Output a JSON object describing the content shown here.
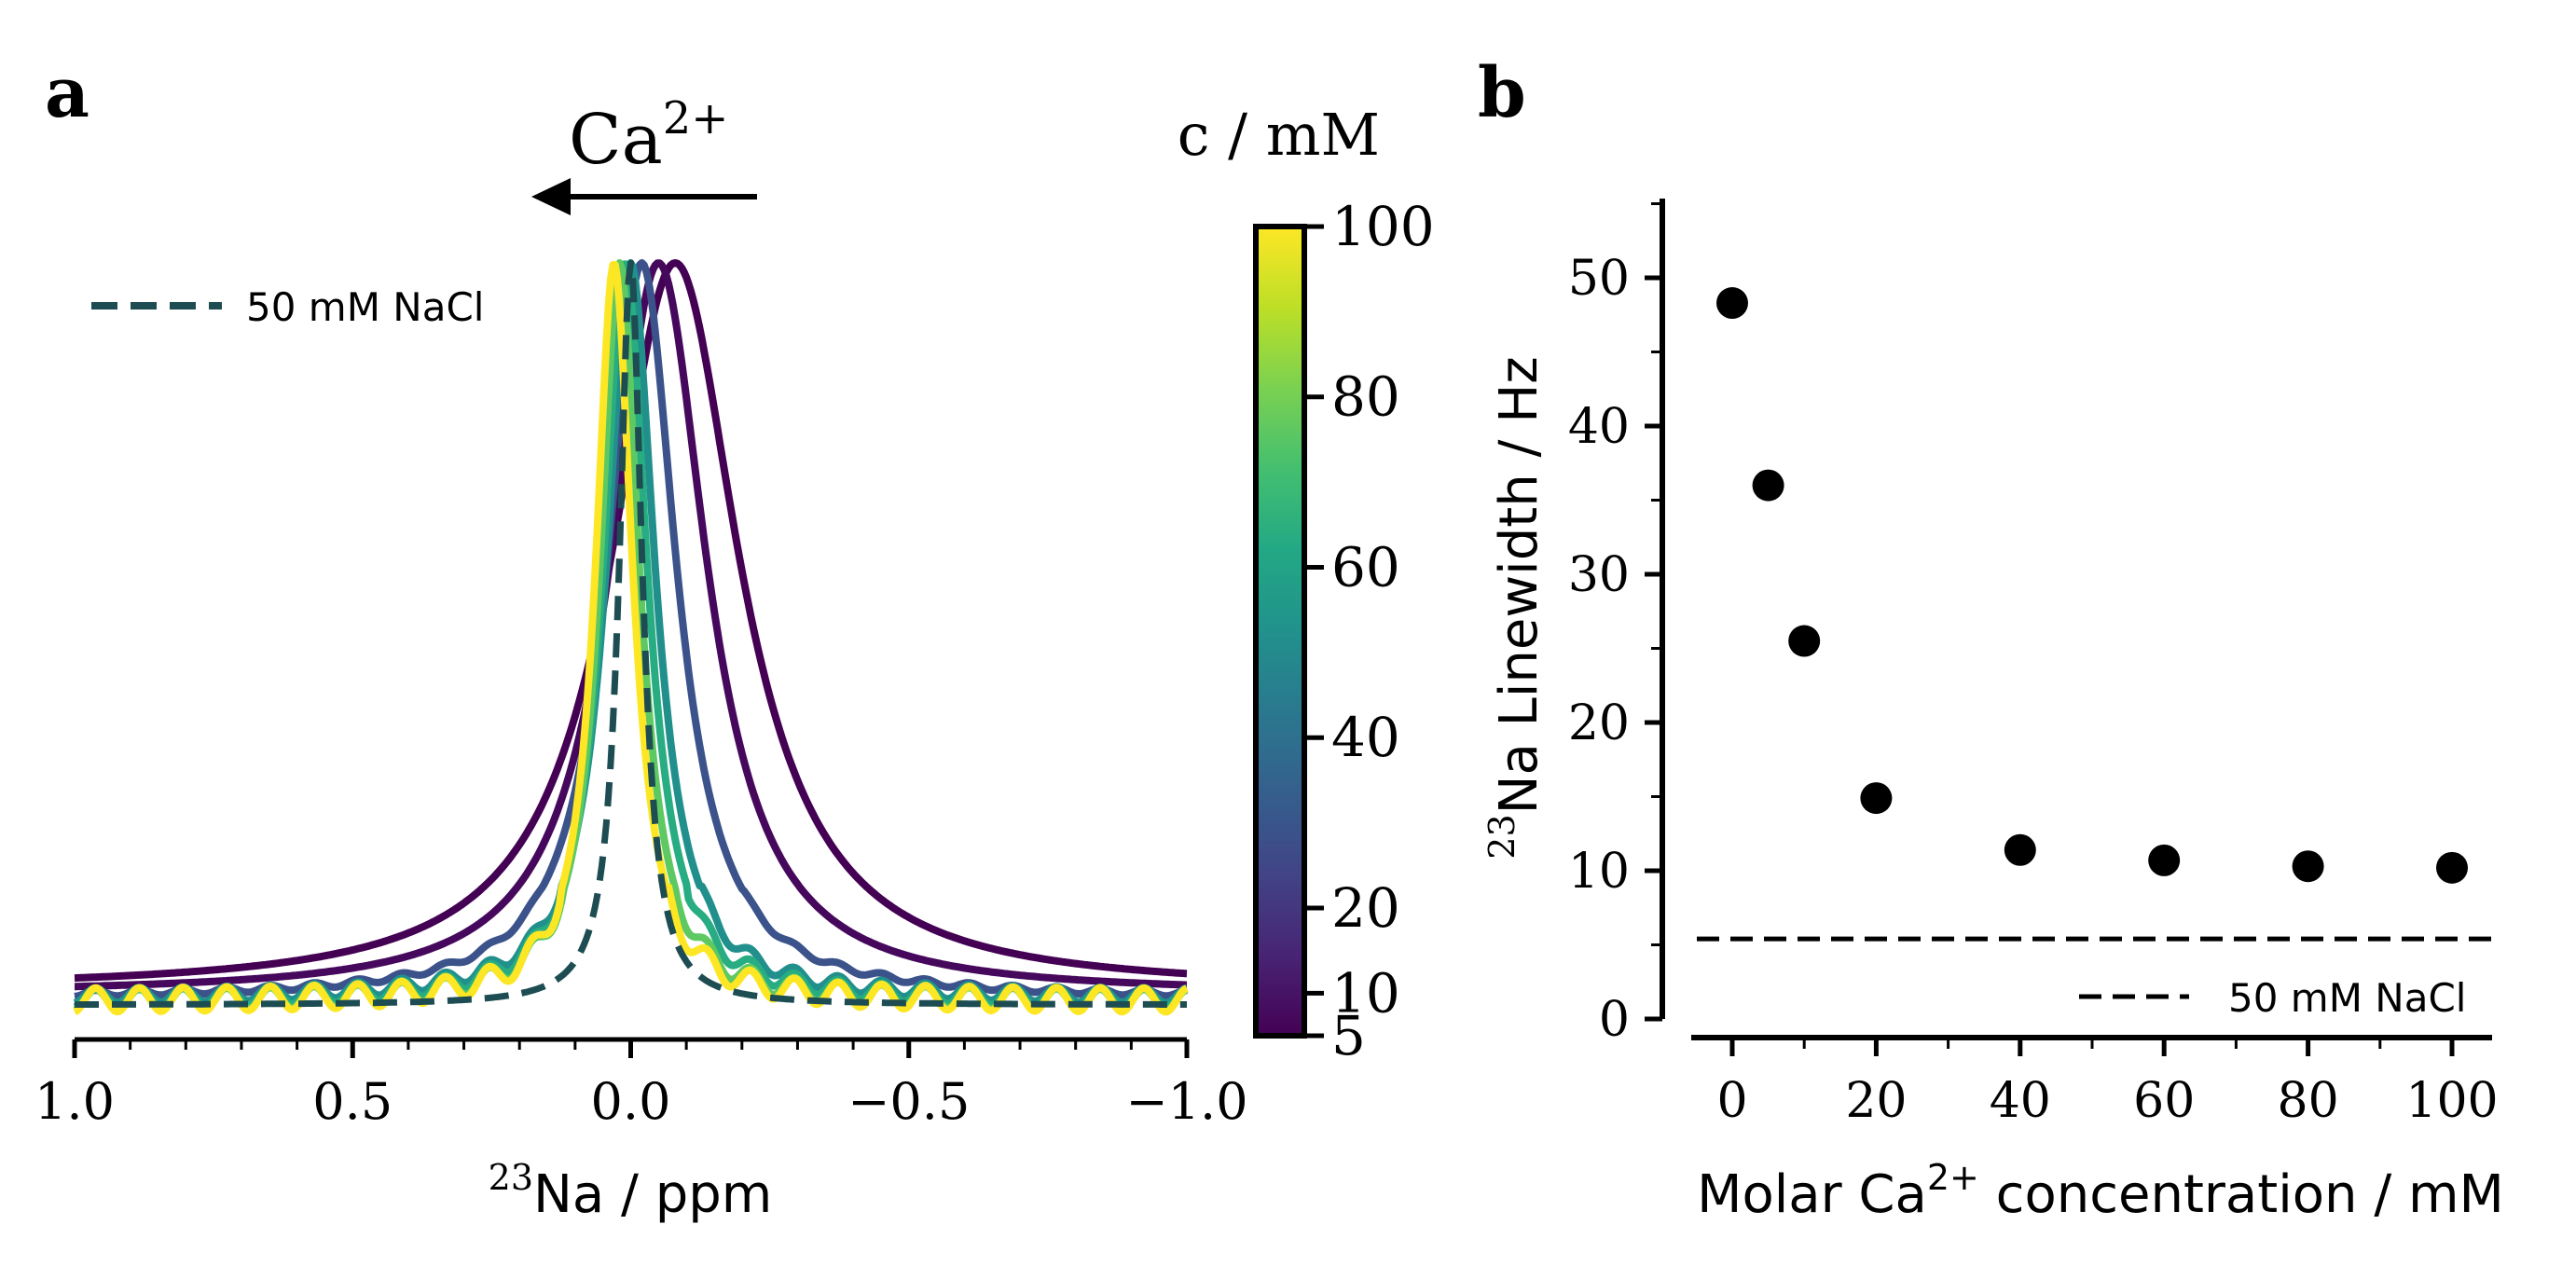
{
  "panel_a": {
    "label": "a",
    "arrow_label": "Ca",
    "arrow_label_sup": "2+",
    "colorbar_title": "c / mM",
    "xlabel_sup": "23",
    "xlabel": "Na / ppm",
    "legend": "50 mM NaCl"
  },
  "panel_b": {
    "label": "b",
    "ylabel_sup": "23",
    "ylabel": "Na Linewidth / Hz",
    "xlabel_main": "Molar Ca",
    "xlabel_sup": "2+",
    "xlabel_rest": " concentration / mM",
    "legend": "50 mM NaCl"
  },
  "colors": {
    "reference": "#1d4d52",
    "points": "#000000",
    "c5": "#440154",
    "c10": "#46085c",
    "c20": "#3b528b",
    "c40": "#21908d",
    "c60": "#27ad81",
    "c80": "#5ec962",
    "c100": "#fde725"
  },
  "chart_data": [
    {
      "type": "line",
      "title": "",
      "xlabel": "23Na / ppm",
      "ylabel": "",
      "xlim": [
        1.0,
        -1.0
      ],
      "xticks": [
        "1.0",
        "0.5",
        "0.0",
        "−0.5",
        "−1.0"
      ],
      "legend": [
        "50 mM NaCl"
      ],
      "colorbar": {
        "label": "c / mM",
        "range": [
          5,
          100
        ],
        "ticks": [
          "100",
          "80",
          "60",
          "40",
          "20",
          "10",
          "5"
        ],
        "tick_values": [
          100,
          80,
          60,
          40,
          20,
          10,
          5
        ]
      },
      "series": [
        {
          "name": "5 mM",
          "concentration": 5,
          "peak_ppm": -0.08,
          "width_ppm": 0.28,
          "baseline": 0.025,
          "ripple": 0.0
        },
        {
          "name": "10 mM",
          "concentration": 10,
          "peak_ppm": -0.05,
          "width_ppm": 0.21,
          "baseline": 0.02,
          "ripple": 0.0
        },
        {
          "name": "20 mM",
          "concentration": 20,
          "peak_ppm": -0.02,
          "width_ppm": 0.15,
          "baseline": 0.015,
          "ripple": 0.004
        },
        {
          "name": "40 mM",
          "concentration": 40,
          "peak_ppm": 0.0,
          "width_ppm": 0.105,
          "baseline": 0.015,
          "ripple": 0.01
        },
        {
          "name": "60 mM",
          "concentration": 60,
          "peak_ppm": 0.01,
          "width_ppm": 0.095,
          "baseline": 0.012,
          "ripple": 0.012
        },
        {
          "name": "80 mM",
          "concentration": 80,
          "peak_ppm": 0.02,
          "width_ppm": 0.085,
          "baseline": 0.01,
          "ripple": 0.014
        },
        {
          "name": "100 mM",
          "concentration": 100,
          "peak_ppm": 0.03,
          "width_ppm": 0.08,
          "baseline": 0.01,
          "ripple": 0.016
        },
        {
          "name": "50 mM NaCl",
          "concentration": null,
          "peak_ppm": 0.0,
          "width_ppm": 0.05,
          "baseline": 0.005,
          "ripple": 0.0,
          "dashed": true
        }
      ]
    },
    {
      "type": "scatter",
      "title": "",
      "xlabel": "Molar Ca2+ concentration / mM",
      "ylabel": "23Na Linewidth / Hz",
      "xlim": [
        -5,
        105
      ],
      "ylim": [
        0,
        55
      ],
      "xticks": [
        0,
        20,
        40,
        60,
        80,
        100
      ],
      "yticks": [
        0,
        10,
        20,
        30,
        40,
        50
      ],
      "x": [
        0,
        5,
        10,
        20,
        40,
        60,
        80,
        100
      ],
      "y": [
        48.3,
        36.0,
        25.5,
        14.9,
        11.4,
        10.7,
        10.3,
        10.2
      ],
      "reference_line": {
        "label": "50 mM NaCl",
        "y": 5.4
      }
    }
  ]
}
